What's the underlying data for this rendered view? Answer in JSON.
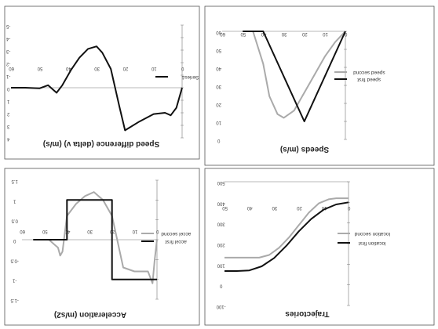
{
  "chart_data": [
    {
      "type": "line",
      "title": "Speed difference (delta v) (m/s)",
      "xlabel": "",
      "ylabel": "",
      "x_ticks": [
        "0",
        "10",
        "20",
        "30",
        "40",
        "50",
        "60"
      ],
      "y_ticks": [
        "4",
        "3",
        "2",
        "1",
        "0",
        "-1",
        "-2",
        "-3",
        "-4",
        "-5"
      ],
      "xlim": [
        0,
        60
      ],
      "ylim": [
        -5,
        4
      ],
      "series": [
        {
          "name": "Series1",
          "color": "#111111",
          "x": [
            0,
            2,
            4,
            6,
            10,
            15,
            20,
            22,
            25,
            28,
            30,
            33,
            36,
            39,
            42,
            44,
            45,
            47,
            50,
            55,
            60
          ],
          "y": [
            0,
            1.6,
            2.2,
            2.0,
            2.1,
            2.7,
            3.4,
            1.5,
            -1.5,
            -2.8,
            -3.3,
            -3.1,
            -2.4,
            -1.4,
            -0.2,
            0.4,
            0.2,
            -0.2,
            0.05,
            0,
            0
          ]
        }
      ]
    },
    {
      "type": "line",
      "title": "Speeds (m/s)",
      "xlabel": "",
      "ylabel": "",
      "x_ticks": [
        "0",
        "10",
        "20",
        "30",
        "40",
        "50",
        "60"
      ],
      "y_ticks": [
        "0",
        "10",
        "20",
        "30",
        "40",
        "50",
        "60"
      ],
      "xlim": [
        0,
        60
      ],
      "ylim": [
        0,
        60
      ],
      "series": [
        {
          "name": "speed second",
          "color": "#aaaaaa",
          "x": [
            0,
            5,
            10,
            15,
            20,
            25,
            30,
            33,
            37,
            40,
            45,
            50
          ],
          "y": [
            0,
            6,
            14,
            24,
            34,
            44,
            48,
            46,
            36,
            18,
            0,
            0
          ]
        },
        {
          "name": "speed first",
          "color": "#111111",
          "x": [
            0,
            20,
            40,
            50
          ],
          "y": [
            0,
            50,
            0,
            0
          ]
        }
      ]
    },
    {
      "type": "line",
      "title": "Acceleration (m/s2)",
      "xlabel": "",
      "ylabel": "",
      "x_ticks": [
        "0",
        "10",
        "20",
        "30",
        "40",
        "50",
        "60"
      ],
      "y_ticks": [
        "-1.5",
        "-1",
        "-0.5",
        "0",
        "0.5",
        "1",
        "1.5"
      ],
      "xlim": [
        0,
        60
      ],
      "ylim": [
        -1.5,
        1.5
      ],
      "series": [
        {
          "name": "accel second",
          "color": "#aaaaaa",
          "x": [
            0,
            1,
            2,
            4,
            6,
            10,
            15,
            20,
            24,
            28,
            32,
            36,
            40,
            42,
            43,
            44,
            46,
            48,
            50,
            55
          ],
          "y": [
            0,
            0.5,
            1.1,
            0.8,
            0.8,
            0.8,
            0.7,
            -0.6,
            -1.0,
            -1.2,
            -1.1,
            -0.9,
            -0.6,
            0.3,
            0.4,
            0.2,
            0.1,
            0,
            0,
            0
          ]
        },
        {
          "name": "accel first",
          "color": "#111111",
          "x": [
            0,
            20,
            20,
            40,
            40,
            55
          ],
          "y": [
            1,
            1,
            -1,
            -1,
            0,
            0
          ]
        }
      ]
    },
    {
      "type": "line",
      "title": "Trajectories",
      "xlabel": "",
      "ylabel": "",
      "x_ticks": [
        "0",
        "10",
        "20",
        "30",
        "40",
        "50"
      ],
      "y_ticks": [
        "-100",
        "0",
        "100",
        "200",
        "300",
        "400",
        "500"
      ],
      "xlim": [
        0,
        50
      ],
      "ylim": [
        -100,
        500
      ],
      "series": [
        {
          "name": "location second",
          "color": "#aaaaaa",
          "x": [
            0,
            5,
            8,
            12,
            16,
            20,
            24,
            28,
            32,
            36,
            40,
            50
          ],
          "y": [
            -20,
            -20,
            -15,
            5,
            50,
            110,
            170,
            220,
            255,
            268,
            268,
            268
          ]
        },
        {
          "name": "location first",
          "color": "#111111",
          "x": [
            0,
            5,
            10,
            15,
            20,
            25,
            30,
            35,
            40,
            45,
            50
          ],
          "y": [
            0,
            10,
            35,
            80,
            140,
            210,
            270,
            310,
            330,
            333,
            333
          ]
        }
      ]
    }
  ]
}
